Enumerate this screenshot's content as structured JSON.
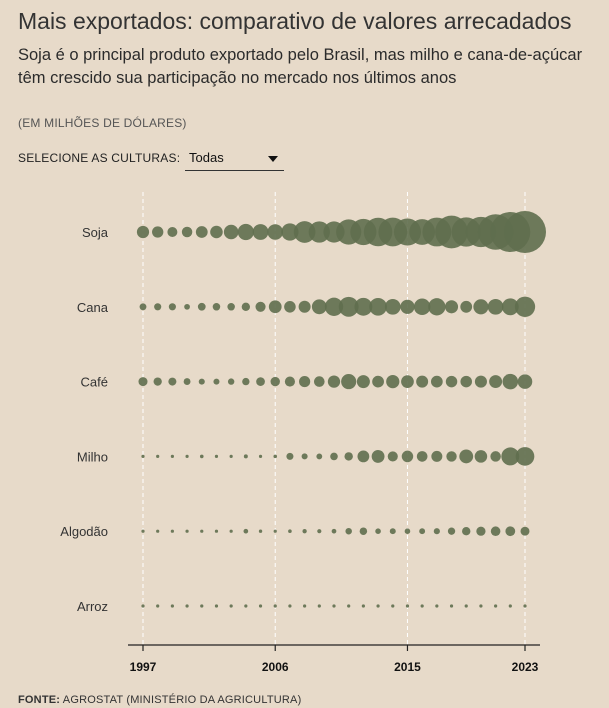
{
  "header": {
    "title": "Mais exportados: comparativo de valores arrecadados",
    "subtitle": "Soja é o principal produto exportado pelo Brasil, mas milho e cana-de-açúcar têm crescido sua participação no mercado nos últimos anos",
    "unit_note": "(EM MILHÕES DE DÓLARES)"
  },
  "selector": {
    "label": "SELECIONE AS CULTURAS:",
    "value": "Todas",
    "icon": "caret-down-icon"
  },
  "source": {
    "label": "FONTE:",
    "text": "AGROSTAT (MINISTÉRIO DA AGRICULTURA)"
  },
  "colors": {
    "background": "#e7dac9",
    "bubble": "#5f6e4e"
  },
  "chart_data": {
    "type": "scatter",
    "encoding": "bubble size = export value",
    "x": [
      1997,
      1998,
      1999,
      2000,
      2001,
      2002,
      2003,
      2004,
      2005,
      2006,
      2007,
      2008,
      2009,
      2010,
      2011,
      2012,
      2013,
      2014,
      2015,
      2016,
      2017,
      2018,
      2019,
      2020,
      2021,
      2022,
      2023
    ],
    "x_ticks": [
      1997,
      2006,
      2015,
      2023
    ],
    "xlim": [
      1997,
      2023
    ],
    "categories": [
      "Soja",
      "Cana",
      "Café",
      "Milho",
      "Algodão",
      "Arroz"
    ],
    "series": [
      {
        "name": "Soja",
        "values": [
          5700,
          4900,
          3800,
          4200,
          5300,
          6000,
          8100,
          10000,
          9500,
          9300,
          11400,
          17980,
          17250,
          17100,
          24150,
          26100,
          30960,
          31400,
          27960,
          25400,
          31700,
          40900,
          32600,
          35200,
          48000,
          60900,
          67300
        ]
      },
      {
        "name": "Cana",
        "values": [
          1800,
          1950,
          1950,
          1250,
          2300,
          2150,
          2150,
          2650,
          3900,
          6200,
          5100,
          5500,
          8400,
          12800,
          15000,
          12200,
          11900,
          9400,
          7700,
          10400,
          11400,
          6500,
          5300,
          8700,
          9400,
          10800,
          15700
        ]
      },
      {
        "name": "Café",
        "values": [
          3100,
          2600,
          2450,
          1780,
          1400,
          1380,
          1550,
          2050,
          2900,
          3350,
          3900,
          4760,
          4280,
          5760,
          8730,
          6460,
          5280,
          6650,
          6160,
          5440,
          5230,
          4980,
          5060,
          5550,
          6360,
          9240,
          8050
        ]
      },
      {
        "name": "Milho",
        "values": [
          20,
          3,
          8,
          2,
          500,
          270,
          370,
          600,
          120,
          480,
          1900,
          1400,
          1300,
          2200,
          2700,
          5300,
          6300,
          3900,
          5000,
          4300,
          4600,
          4100,
          7300,
          6000,
          4200,
          12300,
          13300
        ]
      },
      {
        "name": "Algodão",
        "values": [
          20,
          10,
          40,
          90,
          290,
          190,
          260,
          820,
          430,
          380,
          490,
          700,
          660,
          840,
          1600,
          2140,
          1190,
          1360,
          1180,
          1320,
          1440,
          2030,
          2670,
          3240,
          3480,
          3630,
          3020
        ]
      },
      {
        "name": "Arroz",
        "values": [
          3,
          2,
          5,
          3,
          6,
          7,
          4,
          7,
          25,
          25,
          36,
          90,
          80,
          60,
          250,
          170,
          120,
          190,
          160,
          120,
          180,
          170,
          140,
          180,
          120,
          140,
          250
        ]
      }
    ]
  }
}
